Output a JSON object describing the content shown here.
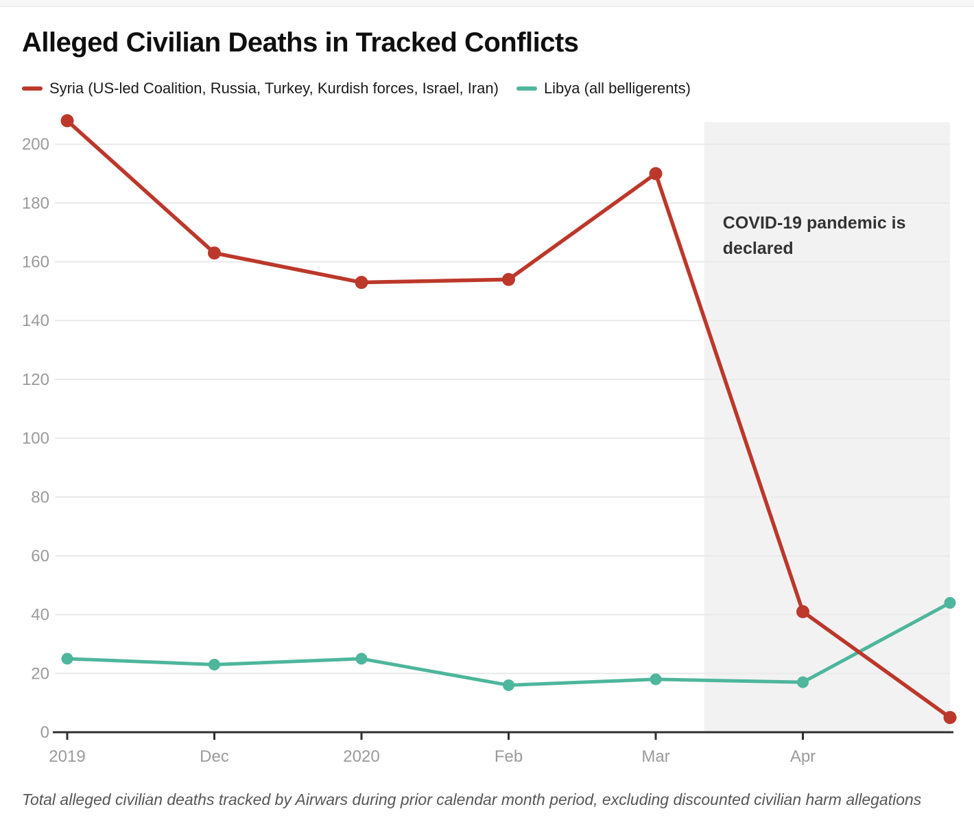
{
  "page": {
    "title": "Alleged Civilian Deaths in Tracked Conflicts",
    "footnote": "Total alleged civilian deaths tracked by Airwars during prior calendar month period, excluding discounted civilian harm allegations"
  },
  "legend": {
    "items": [
      {
        "label": "Syria (US-led Coalition, Russia, Turkey, Kurdish forces, Israel, Iran)",
        "color": "#bc382a"
      },
      {
        "label": "Libya (all belligerents)",
        "color": "#4db69c"
      }
    ]
  },
  "colors": {
    "syria_red": "#bc382a",
    "libya_teal": "#4db69c",
    "gridline": "#e9e9e9",
    "axis": "#2f2f2f",
    "tick_label": "#9a9a9a",
    "shade_region": "#f2f2f2",
    "annotation_text": "#333333"
  },
  "chart_data": {
    "type": "line",
    "categories": [
      "2019",
      "Dec",
      "2020",
      "Feb",
      "Mar",
      "Apr",
      ""
    ],
    "series": [
      {
        "name": "Syria (US-led Coalition, Russia, Turkey, Kurdish forces, Israel, Iran)",
        "color": "#bc382a",
        "values": [
          208,
          163,
          153,
          154,
          190,
          41,
          5
        ]
      },
      {
        "name": "Libya (all belligerents)",
        "color": "#4db69c",
        "values": [
          25,
          23,
          25,
          16,
          18,
          17,
          44
        ]
      }
    ],
    "ylim": [
      0,
      210
    ],
    "yticks": [
      0,
      20,
      40,
      60,
      80,
      100,
      120,
      140,
      160,
      180,
      200
    ],
    "grid": true,
    "legend_position": "top",
    "annotation": {
      "label": "COVID-19 pandemic is declared",
      "lines": [
        "COVID-19 pandemic is",
        "declared"
      ],
      "region_start_index": 4.33,
      "region_end_index": 6.0,
      "region_color": "#f2f2f2"
    }
  }
}
